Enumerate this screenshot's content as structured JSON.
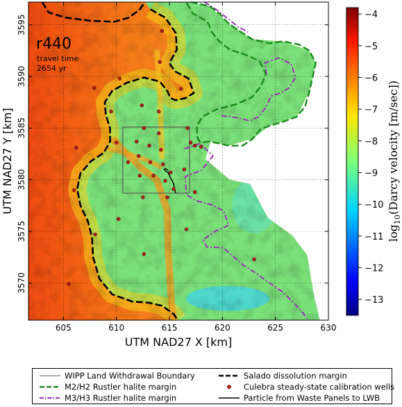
{
  "chart_data": {
    "type": "heatmap",
    "title": "r440",
    "annotation_line1": "travel time",
    "annotation_line2": "2654 yr",
    "xlabel": "UTM NAD27 X [km]",
    "ylabel": "UTM NAD27 Y [km]",
    "xlim": [
      601.7,
      630
    ],
    "ylim": [
      3566.4,
      3597.2
    ],
    "x_ticks": [
      605,
      610,
      615,
      620,
      625,
      630
    ],
    "y_ticks": [
      3570,
      3575,
      3580,
      3585,
      3590,
      3595
    ],
    "grid": true,
    "colorbar": {
      "label": "log10(Darcy velocity [m/sec])",
      "label_main": "log",
      "label_sub": "10",
      "label_rest": "(Darcy velocity [m/sec])",
      "range": [
        -13.5,
        -3.8
      ],
      "ticks": [
        -13,
        -12,
        -11,
        -10,
        -9,
        -8,
        -7,
        -6,
        -5,
        -4
      ],
      "colormap": "jet"
    },
    "wipp_boundary": {
      "x": [
        610.6,
        616.9
      ],
      "y": [
        3578.7,
        3585.1
      ]
    },
    "calibration_wells": [
      [
        607.9,
        3588.9
      ],
      [
        609.5,
        3586.6
      ],
      [
        612.4,
        3587.2
      ],
      [
        614.1,
        3591.4
      ],
      [
        614.3,
        3594.4
      ],
      [
        616.1,
        3588.8
      ],
      [
        606.2,
        3583.1
      ],
      [
        606.0,
        3579.0
      ],
      [
        608.0,
        3574.7
      ],
      [
        610.2,
        3576.2
      ],
      [
        611.1,
        3581.7
      ],
      [
        611.9,
        3583.7
      ],
      [
        612.1,
        3582.3
      ],
      [
        612.2,
        3580.4
      ],
      [
        612.6,
        3585.0
      ],
      [
        613.1,
        3583.3
      ],
      [
        613.2,
        3581.7
      ],
      [
        613.5,
        3580.4
      ],
      [
        614.0,
        3584.5
      ],
      [
        614.2,
        3582.9
      ],
      [
        614.4,
        3581.5
      ],
      [
        614.6,
        3579.9
      ],
      [
        615.1,
        3580.7
      ],
      [
        616.4,
        3581.0
      ],
      [
        616.7,
        3585.0
      ],
      [
        617.0,
        3583.6
      ],
      [
        617.4,
        3583.3
      ],
      [
        615.4,
        3579.1
      ],
      [
        614.8,
        3578.3
      ],
      [
        612.5,
        3578.3
      ],
      [
        612.6,
        3572.8
      ],
      [
        616.6,
        3575.2
      ],
      [
        623.0,
        3572.3
      ],
      [
        605.5,
        3569.9
      ],
      [
        610.3,
        3589.8
      ],
      [
        617.4,
        3578.8
      ],
      [
        618.0,
        3583.2
      ],
      [
        614.0,
        3586.6
      ],
      [
        610.0,
        3583.6
      ]
    ],
    "particle_path": [
      [
        614.9,
        3580.9
      ],
      [
        614.6,
        3581.1
      ],
      [
        614.5,
        3581.0
      ],
      [
        614.7,
        3580.8
      ],
      [
        614.9,
        3580.7
      ],
      [
        614.9,
        3580.6
      ],
      [
        615.1,
        3580.2
      ],
      [
        615.4,
        3579.6
      ],
      [
        615.5,
        3579.0
      ],
      [
        615.6,
        3578.7
      ]
    ],
    "salado_margin": [
      [
        613.2,
        3596.5
      ],
      [
        614.6,
        3595.7
      ],
      [
        615.6,
        3594.2
      ],
      [
        615.7,
        3592.6
      ],
      [
        615.0,
        3591.3
      ],
      [
        615.5,
        3590.5
      ],
      [
        616.8,
        3589.8
      ],
      [
        617.3,
        3588.4
      ],
      [
        616.5,
        3587.9
      ],
      [
        615.6,
        3587.7
      ],
      [
        615.1,
        3587.9
      ],
      [
        614.8,
        3588.6
      ],
      [
        614.1,
        3589.5
      ],
      [
        612.6,
        3589.9
      ],
      [
        611.0,
        3589.4
      ],
      [
        609.6,
        3588.6
      ],
      [
        608.9,
        3587.5
      ],
      [
        609.0,
        3586.3
      ],
      [
        609.4,
        3585.0
      ],
      [
        609.4,
        3583.7
      ],
      [
        608.8,
        3582.6
      ],
      [
        607.6,
        3581.8
      ],
      [
        606.6,
        3580.6
      ],
      [
        606.3,
        3579.1
      ],
      [
        606.6,
        3577.5
      ],
      [
        607.3,
        3576.0
      ],
      [
        607.7,
        3574.4
      ],
      [
        607.8,
        3572.5
      ],
      [
        608.4,
        3570.4
      ],
      [
        609.6,
        3568.9
      ],
      [
        611.5,
        3568.2
      ],
      [
        613.0,
        3568.1
      ],
      [
        614.3,
        3567.8
      ],
      [
        615.4,
        3567.0
      ],
      [
        615.8,
        3566.4
      ]
    ],
    "salado_margin_top": [
      [
        603.0,
        3597.2
      ],
      [
        603.6,
        3596.2
      ],
      [
        605.2,
        3595.7
      ],
      [
        607.5,
        3595.4
      ],
      [
        609.8,
        3595.3
      ],
      [
        611.2,
        3595.7
      ],
      [
        612.2,
        3596.5
      ],
      [
        612.7,
        3597.2
      ]
    ],
    "salado_margin_topleft": [
      [
        600.8,
        3597.2
      ],
      [
        601.1,
        3596.8
      ]
    ],
    "m2h2_margin": [
      [
        617.0,
        3597.2
      ],
      [
        618.8,
        3596.8
      ],
      [
        619.8,
        3596.0
      ],
      [
        620.5,
        3595.2
      ],
      [
        621.6,
        3594.4
      ],
      [
        622.8,
        3593.6
      ],
      [
        624.4,
        3593.2
      ],
      [
        625.7,
        3593.4
      ],
      [
        627.2,
        3593.1
      ],
      [
        628.2,
        3592.5
      ],
      [
        628.8,
        3591.3
      ],
      [
        628.5,
        3589.9
      ],
      [
        628.2,
        3588.5
      ],
      [
        627.8,
        3587.1
      ],
      [
        627.0,
        3586.1
      ],
      [
        625.7,
        3585.6
      ],
      [
        624.4,
        3585.2
      ],
      [
        623.6,
        3584.9
      ],
      [
        622.9,
        3584.0
      ],
      [
        621.9,
        3583.3
      ],
      [
        620.6,
        3583.3
      ],
      [
        618.8,
        3583.7
      ],
      [
        617.9,
        3583.6
      ],
      [
        617.6,
        3584.2
      ],
      [
        617.6,
        3585.2
      ],
      [
        618.1,
        3586.1
      ],
      [
        619.4,
        3586.8
      ],
      [
        621.3,
        3587.3
      ],
      [
        622.8,
        3588.0
      ],
      [
        623.6,
        3589.0
      ],
      [
        624.1,
        3590.2
      ],
      [
        623.5,
        3591.5
      ],
      [
        622.2,
        3592.1
      ],
      [
        620.7,
        3592.6
      ],
      [
        619.7,
        3593.4
      ],
      [
        619.0,
        3594.3
      ],
      [
        618.6,
        3595.3
      ],
      [
        617.2,
        3596.1
      ],
      [
        616.6,
        3597.2
      ]
    ],
    "m3h3_margin_a": [
      [
        618.3,
        3597.2
      ],
      [
        619.4,
        3596.5
      ],
      [
        620.5,
        3595.6
      ],
      [
        621.5,
        3594.8
      ],
      [
        622.4,
        3594.3
      ]
    ],
    "m3h3_margin_b": [
      [
        619.9,
        3586.2
      ],
      [
        621.4,
        3586.0
      ],
      [
        622.6,
        3585.7
      ],
      [
        623.4,
        3586.1
      ],
      [
        624.1,
        3587.0
      ],
      [
        624.6,
        3588.1
      ],
      [
        625.5,
        3588.4
      ],
      [
        626.3,
        3588.9
      ],
      [
        626.9,
        3589.9
      ],
      [
        626.5,
        3591.2
      ],
      [
        625.3,
        3591.8
      ],
      [
        624.0,
        3591.3
      ],
      [
        624.2,
        3590.0
      ]
    ],
    "m3h3_margin_c": [
      [
        616.4,
        3583.0
      ],
      [
        617.9,
        3583.5
      ],
      [
        619.1,
        3582.3
      ],
      [
        618.0,
        3580.9
      ],
      [
        616.5,
        3580.3
      ],
      [
        616.6,
        3578.6
      ],
      [
        617.4,
        3578.0
      ],
      [
        618.9,
        3577.6
      ],
      [
        620.1,
        3577.0
      ],
      [
        620.6,
        3575.6
      ],
      [
        619.3,
        3575.0
      ],
      [
        618.2,
        3574.2
      ],
      [
        618.5,
        3573.5
      ],
      [
        620.1,
        3573.4
      ],
      [
        621.0,
        3572.6
      ],
      [
        622.0,
        3571.7
      ],
      [
        623.1,
        3571.0
      ],
      [
        624.3,
        3570.1
      ],
      [
        625.6,
        3569.2
      ],
      [
        626.7,
        3568.1
      ],
      [
        627.6,
        3567.1
      ],
      [
        628.1,
        3566.4
      ]
    ]
  },
  "legend": {
    "items": [
      {
        "label": "WIPP Land Withdrawal Boundary",
        "style": "thin-line",
        "color": "#555555"
      },
      {
        "label": "Salado dissolution margin",
        "style": "dashed",
        "color": "#000000"
      },
      {
        "label": "M2/H2 Rustler halite margin",
        "style": "dashed",
        "color": "#1a8a1a"
      },
      {
        "label": "Culebra steady-state calibration wells",
        "style": "marker",
        "color": "#b22222"
      },
      {
        "label": "M3/H3 Rustler halite margin",
        "style": "dashdot",
        "color": "#9b30b5"
      },
      {
        "label": "Particle from Waste Panels to LWB",
        "style": "solid",
        "color": "#000000"
      }
    ]
  }
}
